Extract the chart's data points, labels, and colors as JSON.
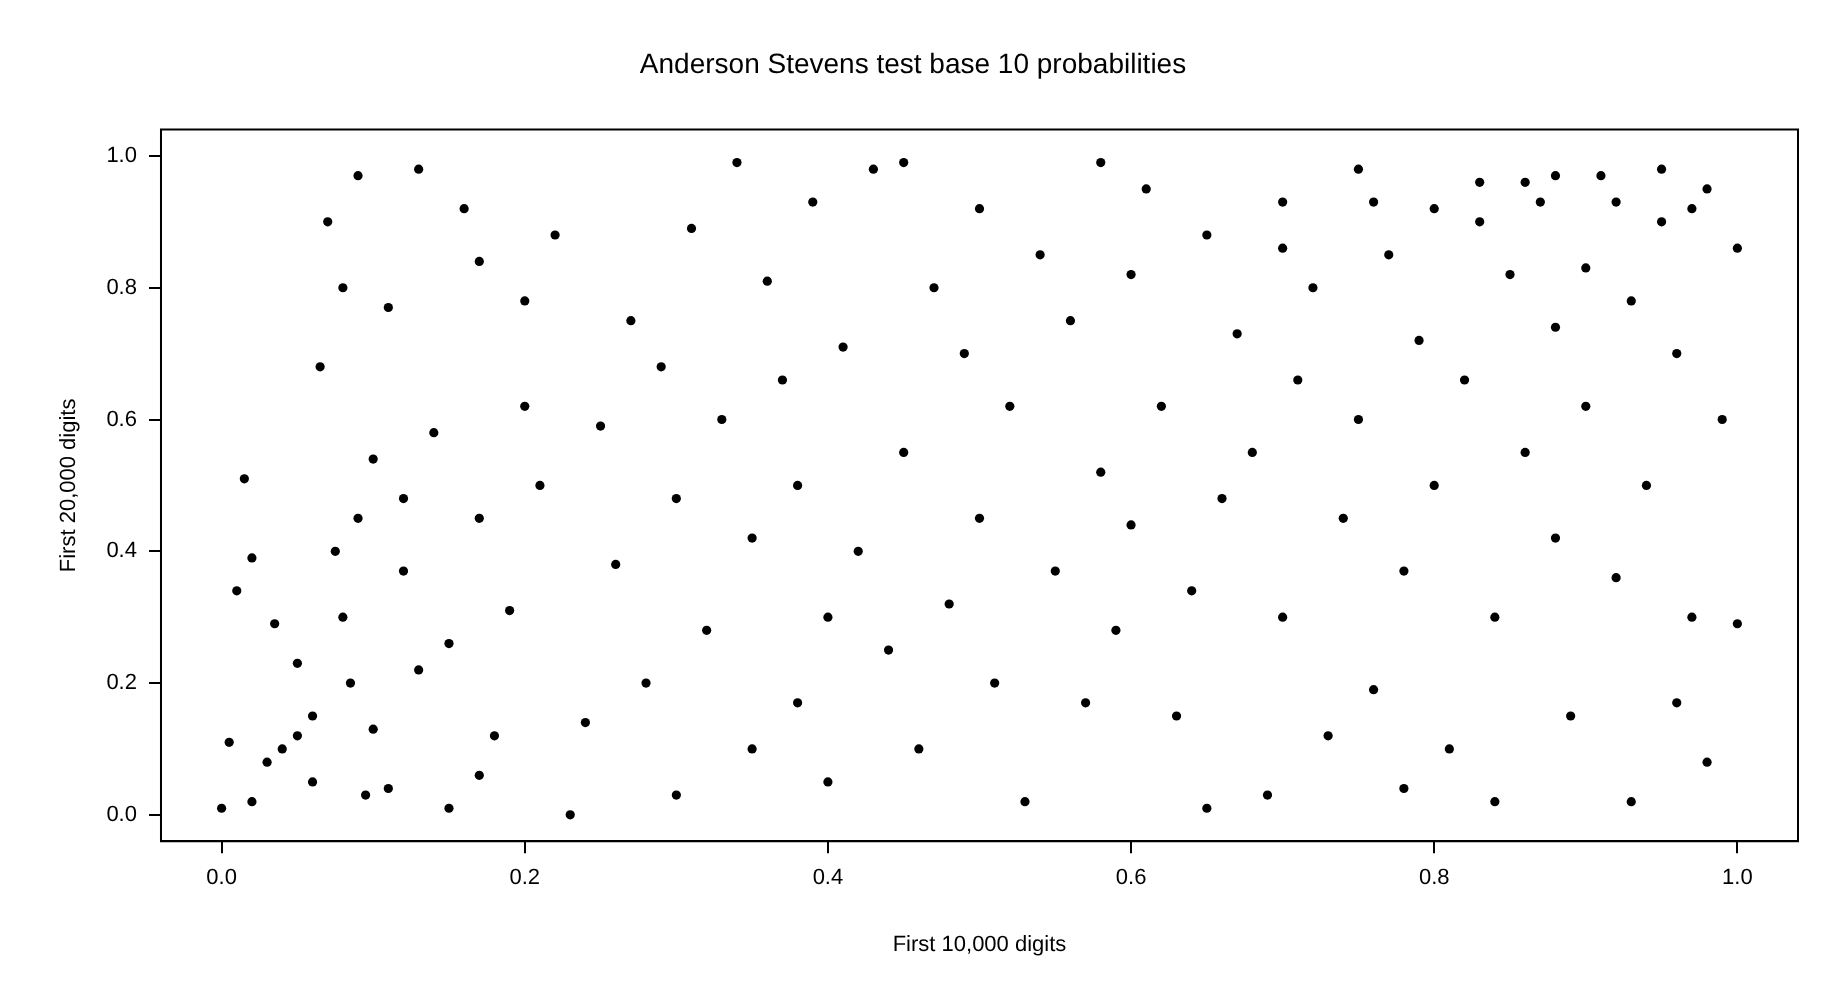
{
  "chart_data": {
    "type": "scatter",
    "title": "Anderson Stevens test base 10 probabilities",
    "xlabel": "First 10,000 digits",
    "ylabel": "First 20,000 digits",
    "xlim": [
      -0.04,
      1.04
    ],
    "ylim": [
      -0.04,
      1.04
    ],
    "xticks": [
      {
        "value": 0,
        "label": "0.0"
      },
      {
        "value": 0.2,
        "label": "0.2"
      },
      {
        "value": 0.4,
        "label": "0.4"
      },
      {
        "value": 0.6,
        "label": "0.6"
      },
      {
        "value": 0.8,
        "label": "0.8"
      },
      {
        "value": 1,
        "label": "1.0"
      }
    ],
    "yticks": [
      {
        "value": 0,
        "label": "0.0"
      },
      {
        "value": 0.2,
        "label": "0.2"
      },
      {
        "value": 0.4,
        "label": "0.4"
      },
      {
        "value": 0.6,
        "label": "0.6"
      },
      {
        "value": 0.8,
        "label": "0.8"
      },
      {
        "value": 1,
        "label": "1.0"
      }
    ],
    "grid": false,
    "legend": false,
    "marker": "circle",
    "series": [
      {
        "color": "#000000",
        "x": [
          0.0,
          0.005,
          0.01,
          0.015,
          0.02,
          0.03,
          0.035,
          0.05,
          0.06,
          0.065,
          0.07,
          0.075,
          0.08,
          0.085,
          0.09,
          0.095,
          0.1,
          0.1,
          0.11,
          0.12,
          0.13,
          0.14,
          0.15,
          0.15,
          0.16,
          0.17,
          0.17,
          0.18,
          0.19,
          0.2,
          0.2,
          0.21,
          0.22,
          0.23,
          0.24,
          0.25,
          0.26,
          0.27,
          0.28,
          0.29,
          0.3,
          0.3,
          0.31,
          0.32,
          0.33,
          0.34,
          0.35,
          0.35,
          0.36,
          0.37,
          0.38,
          0.38,
          0.39,
          0.4,
          0.4,
          0.41,
          0.42,
          0.43,
          0.44,
          0.45,
          0.45,
          0.46,
          0.47,
          0.48,
          0.49,
          0.5,
          0.5,
          0.51,
          0.52,
          0.53,
          0.54,
          0.55,
          0.56,
          0.57,
          0.58,
          0.58,
          0.59,
          0.6,
          0.6,
          0.61,
          0.62,
          0.63,
          0.64,
          0.65,
          0.65,
          0.66,
          0.67,
          0.68,
          0.69,
          0.7,
          0.7,
          0.71,
          0.72,
          0.73,
          0.74,
          0.75,
          0.75,
          0.76,
          0.77,
          0.78,
          0.78,
          0.79,
          0.8,
          0.8,
          0.81,
          0.82,
          0.83,
          0.84,
          0.84,
          0.85,
          0.86,
          0.87,
          0.88,
          0.88,
          0.89,
          0.9,
          0.9,
          0.91,
          0.92,
          0.93,
          0.93,
          0.94,
          0.95,
          0.96,
          0.96,
          0.97,
          0.97,
          0.98,
          0.99,
          1.0,
          1.0,
          0.02,
          0.04,
          0.06,
          0.08,
          0.11,
          0.13,
          0.17,
          0.12,
          0.05,
          0.09,
          0.83,
          0.86,
          0.92,
          0.95,
          0.98,
          0.88,
          0.76,
          0.7
        ],
        "values": [
          0.01,
          0.11,
          0.34,
          0.51,
          0.39,
          0.08,
          0.29,
          0.23,
          0.05,
          0.68,
          0.9,
          0.4,
          0.8,
          0.2,
          0.97,
          0.03,
          0.13,
          0.54,
          0.77,
          0.37,
          0.98,
          0.58,
          0.01,
          0.26,
          0.92,
          0.84,
          0.45,
          0.12,
          0.31,
          0.78,
          0.62,
          0.5,
          0.88,
          0.0,
          0.14,
          0.59,
          0.38,
          0.75,
          0.2,
          0.68,
          0.48,
          0.03,
          0.89,
          0.28,
          0.6,
          0.99,
          0.1,
          0.42,
          0.81,
          0.66,
          0.17,
          0.5,
          0.93,
          0.3,
          0.05,
          0.71,
          0.4,
          0.98,
          0.25,
          0.99,
          0.55,
          0.1,
          0.8,
          0.32,
          0.7,
          0.45,
          0.92,
          0.2,
          0.62,
          0.02,
          0.85,
          0.37,
          0.75,
          0.17,
          0.99,
          0.52,
          0.28,
          0.82,
          0.44,
          0.95,
          0.62,
          0.15,
          0.34,
          0.88,
          0.01,
          0.48,
          0.73,
          0.55,
          0.03,
          0.93,
          0.3,
          0.66,
          0.8,
          0.12,
          0.45,
          0.98,
          0.6,
          0.19,
          0.85,
          0.37,
          0.04,
          0.72,
          0.5,
          0.92,
          0.1,
          0.66,
          0.96,
          0.3,
          0.02,
          0.82,
          0.55,
          0.93,
          0.42,
          0.74,
          0.15,
          0.83,
          0.62,
          0.97,
          0.36,
          0.02,
          0.78,
          0.5,
          0.98,
          0.17,
          0.7,
          0.3,
          0.92,
          0.08,
          0.6,
          0.86,
          0.29,
          0.02,
          0.1,
          0.15,
          0.3,
          0.04,
          0.22,
          0.06,
          0.48,
          0.12,
          0.45,
          0.9,
          0.96,
          0.93,
          0.9,
          0.95,
          0.97,
          0.93,
          0.86
        ]
      }
    ]
  }
}
